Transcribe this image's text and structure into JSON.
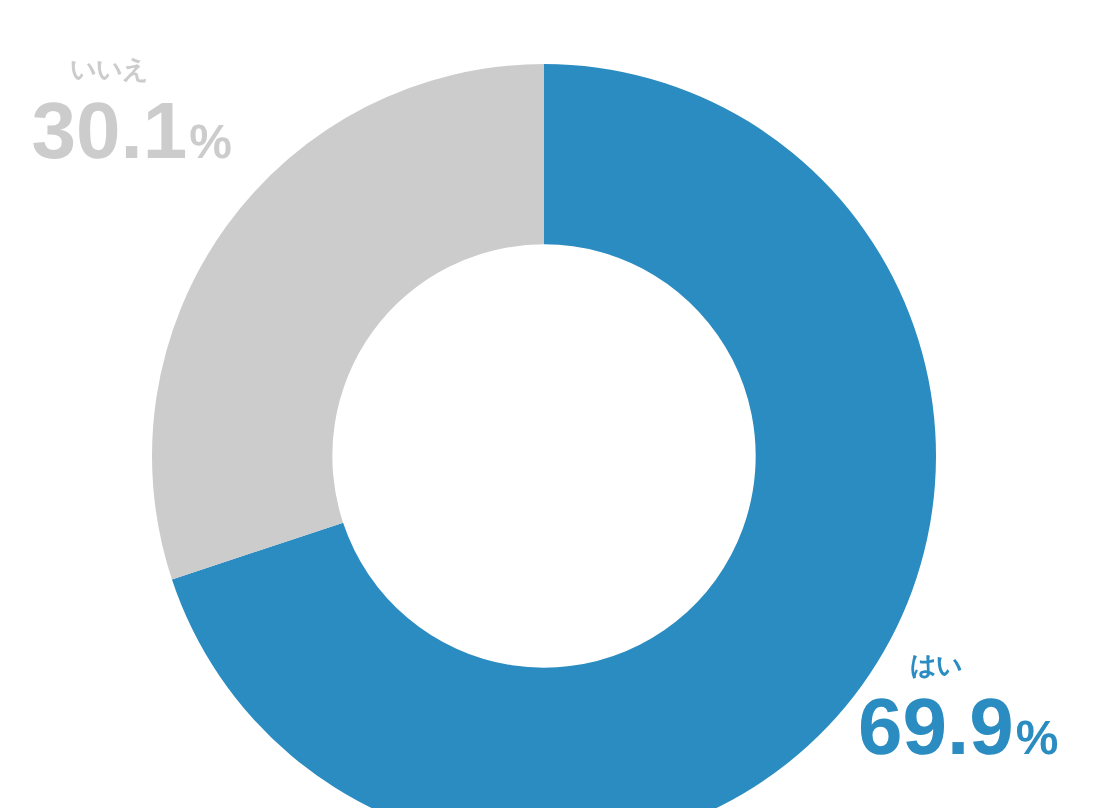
{
  "chart_data": {
    "type": "donut",
    "categories": [
      "はい",
      "いいえ"
    ],
    "values": [
      69.9,
      30.1
    ],
    "colors": [
      "#2a8cc0",
      "#cccccc"
    ],
    "value_labels": [
      "69.9%",
      "30.1%"
    ],
    "legend": false
  }
}
